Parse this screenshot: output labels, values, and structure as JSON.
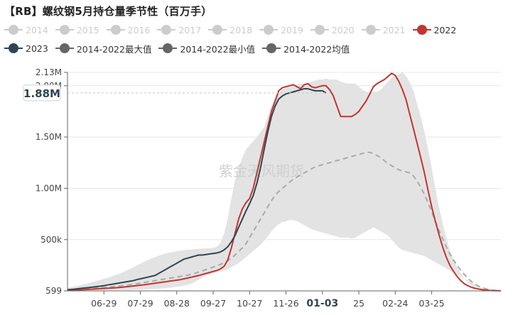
{
  "title": "【RB】螺纹钢5月持仓量季节性（百万手）",
  "watermark": "紫金天风期货",
  "legend": [
    {
      "label": "2014",
      "color": "#cccccc",
      "dimmed": true
    },
    {
      "label": "2015",
      "color": "#cccccc",
      "dimmed": true
    },
    {
      "label": "2016",
      "color": "#cccccc",
      "dimmed": true
    },
    {
      "label": "2017",
      "color": "#cccccc",
      "dimmed": true
    },
    {
      "label": "2018",
      "color": "#cccccc",
      "dimmed": true
    },
    {
      "label": "2019",
      "color": "#cccccc",
      "dimmed": true
    },
    {
      "label": "2020",
      "color": "#cccccc",
      "dimmed": true
    },
    {
      "label": "2021",
      "color": "#cccccc",
      "dimmed": true
    },
    {
      "label": "2022",
      "color": "#c23531",
      "dimmed": false
    },
    {
      "label": "2023",
      "color": "#2f4554",
      "dimmed": false
    },
    {
      "label": "2014-2022最大值",
      "color": "#666666",
      "dimmed": false
    },
    {
      "label": "2014-2022最小值",
      "color": "#666666",
      "dimmed": false
    },
    {
      "label": "2014-2022均值",
      "color": "#666666",
      "dimmed": false
    }
  ],
  "tooltip_value": "1.88M",
  "chart_data": {
    "type": "line",
    "y_tick_labels": [
      "599",
      "500k",
      "1.00M",
      "1.50M",
      "2.00M",
      "2.13M"
    ],
    "y_tick_values": [
      599,
      500000,
      1000000,
      1500000,
      2000000,
      2130000
    ],
    "ylim": [
      599,
      2130000
    ],
    "x_tick_labels": [
      "06-29",
      "07-29",
      "08-28",
      "09-27",
      "10-27",
      "11-26",
      "01-03",
      "25",
      "02-24",
      "03-25"
    ],
    "x_tick_highlight": "01-03",
    "x_points": 120,
    "x_tick_positions": [
      10,
      20,
      30,
      40,
      50,
      60,
      70,
      80,
      90,
      100
    ],
    "series": [
      {
        "name": "2014-2022最大值",
        "values": [
          30000,
          38000,
          45000,
          52000,
          60000,
          68000,
          78000,
          88000,
          98000,
          108000,
          118000,
          128000,
          140000,
          152000,
          165000,
          180000,
          195000,
          212000,
          230000,
          248000,
          265000,
          282000,
          300000,
          316000,
          330000,
          344000,
          356000,
          366000,
          374000,
          380000,
          388000,
          394000,
          398000,
          402000,
          404000,
          408000,
          410000,
          412000,
          414000,
          416000,
          420000,
          430000,
          470000,
          560000,
          700000,
          900000,
          1080000,
          1200000,
          1300000,
          1380000,
          1420000,
          1460000,
          1500000,
          1550000,
          1600000,
          1700000,
          1800000,
          1880000,
          1930000,
          1960000,
          1980000,
          1990000,
          2000000,
          2010000,
          2020000,
          2020000,
          2030000,
          2040000,
          2050000,
          2060000,
          2060000,
          2070000,
          2060000,
          2060000,
          2060000,
          2040000,
          2030000,
          2020000,
          2020000,
          2020000,
          1990000,
          1960000,
          1940000,
          1940000,
          1940000,
          1940000,
          1960000,
          2000000,
          2040000,
          2080000,
          2100000,
          2110000,
          2130000,
          2090000,
          2030000,
          1950000,
          1820000,
          1700000,
          1550000,
          1380000,
          1200000,
          1000000,
          820000,
          660000,
          520000,
          400000,
          300000,
          230000,
          170000,
          120000,
          80000,
          55000,
          40000,
          30000,
          22000,
          16000,
          12000,
          9000,
          6000,
          4000
        ],
        "color": "#e3e3e3"
      },
      {
        "name": "2014-2022最小值",
        "values": [
          2000,
          2000,
          3000,
          3000,
          4000,
          4000,
          5000,
          5000,
          6000,
          6000,
          7000,
          7000,
          8000,
          8000,
          9000,
          9000,
          10000,
          10000,
          11000,
          12000,
          13000,
          14000,
          16000,
          18000,
          20000,
          22000,
          25000,
          28000,
          32000,
          36000,
          40000,
          45000,
          50000,
          60000,
          70000,
          90000,
          110000,
          130000,
          150000,
          160000,
          170000,
          180000,
          190000,
          200000,
          210000,
          230000,
          250000,
          270000,
          300000,
          330000,
          360000,
          390000,
          420000,
          450000,
          490000,
          530000,
          580000,
          620000,
          650000,
          670000,
          680000,
          690000,
          690000,
          680000,
          660000,
          640000,
          620000,
          600000,
          590000,
          580000,
          570000,
          560000,
          550000,
          540000,
          530000,
          520000,
          520000,
          520000,
          510000,
          520000,
          540000,
          560000,
          580000,
          600000,
          620000,
          600000,
          580000,
          560000,
          540000,
          500000,
          460000,
          420000,
          400000,
          390000,
          380000,
          370000,
          360000,
          350000,
          340000,
          320000,
          300000,
          280000,
          260000,
          240000,
          220000,
          200000,
          180000,
          160000,
          140000,
          120000,
          100000,
          80000,
          60000,
          40000,
          25000,
          15000,
          10000,
          6000,
          3000,
          1000
        ],
        "color": "#e3e3e3"
      },
      {
        "name": "2014-2022均值",
        "values": [
          15000,
          16000,
          17000,
          18000,
          20000,
          22000,
          24000,
          26000,
          28000,
          30000,
          33000,
          36000,
          40000,
          44000,
          48000,
          52000,
          56000,
          60000,
          65000,
          70000,
          76000,
          82000,
          88000,
          94000,
          100000,
          106000,
          112000,
          118000,
          124000,
          130000,
          136000,
          142000,
          148000,
          154000,
          162000,
          172000,
          184000,
          196000,
          208000,
          220000,
          232000,
          244000,
          258000,
          275000,
          295000,
          320000,
          350000,
          385000,
          420000,
          460000,
          520000,
          580000,
          640000,
          700000,
          760000,
          820000,
          880000,
          930000,
          970000,
          1000000,
          1030000,
          1060000,
          1090000,
          1110000,
          1130000,
          1150000,
          1170000,
          1190000,
          1210000,
          1220000,
          1230000,
          1240000,
          1250000,
          1260000,
          1270000,
          1280000,
          1290000,
          1300000,
          1310000,
          1320000,
          1330000,
          1340000,
          1350000,
          1350000,
          1340000,
          1320000,
          1300000,
          1270000,
          1240000,
          1220000,
          1200000,
          1180000,
          1170000,
          1160000,
          1150000,
          1120000,
          1070000,
          1010000,
          940000,
          860000,
          770000,
          680000,
          590000,
          510000,
          430000,
          360000,
          300000,
          250000,
          200000,
          160000,
          120000,
          90000,
          65000,
          45000,
          30000,
          20000,
          12000,
          7000,
          4000,
          2000
        ],
        "color": "#aaaaaa"
      },
      {
        "name": "2022",
        "values": [
          5000,
          6000,
          8000,
          10000,
          12000,
          14000,
          16000,
          18000,
          20000,
          22000,
          24000,
          26000,
          28000,
          30000,
          33000,
          36000,
          40000,
          44000,
          48000,
          52000,
          56000,
          60000,
          65000,
          70000,
          75000,
          80000,
          85000,
          90000,
          95000,
          100000,
          105000,
          110000,
          118000,
          126000,
          134000,
          142000,
          150000,
          160000,
          170000,
          180000,
          190000,
          200000,
          215000,
          240000,
          300000,
          420000,
          560000,
          700000,
          800000,
          860000,
          900000,
          1000000,
          1150000,
          1300000,
          1450000,
          1600000,
          1750000,
          1850000,
          1950000,
          1980000,
          1990000,
          2000000,
          2010000,
          1990000,
          1970000,
          2010000,
          2020000,
          1990000,
          1980000,
          1990000,
          2000000,
          2000000,
          1960000,
          1900000,
          1800000,
          1700000,
          1700000,
          1700000,
          1700000,
          1720000,
          1750000,
          1800000,
          1850000,
          1920000,
          1990000,
          2020000,
          2040000,
          2060000,
          2090000,
          2120000,
          2100000,
          2040000,
          1960000,
          1860000,
          1720000,
          1580000,
          1440000,
          1300000,
          1150000,
          980000,
          820000,
          680000,
          550000,
          430000,
          330000,
          250000,
          190000,
          140000,
          100000,
          70000,
          50000,
          35000,
          25000,
          18000,
          12000,
          8000,
          5000,
          3000,
          2000,
          1000
        ],
        "color": "#c23531"
      },
      {
        "name": "2023",
        "values": [
          10000,
          14000,
          18000,
          22000,
          26000,
          30000,
          34000,
          38000,
          42000,
          46000,
          52000,
          58000,
          64000,
          70000,
          76000,
          82000,
          88000,
          94000,
          100000,
          110000,
          118000,
          126000,
          134000,
          142000,
          150000,
          170000,
          190000,
          210000,
          230000,
          250000,
          270000,
          290000,
          310000,
          320000,
          330000,
          340000,
          350000,
          350000,
          355000,
          360000,
          365000,
          370000,
          380000,
          400000,
          430000,
          480000,
          540000,
          620000,
          700000,
          780000,
          850000,
          930000,
          1050000,
          1200000,
          1380000,
          1550000,
          1700000,
          1800000,
          1870000,
          1900000,
          1920000,
          1930000,
          1940000,
          1950000,
          1960000,
          1970000,
          1970000,
          1960000,
          1950000,
          1950000,
          1950000,
          1930000
        ],
        "color": "#2f4554"
      }
    ]
  }
}
